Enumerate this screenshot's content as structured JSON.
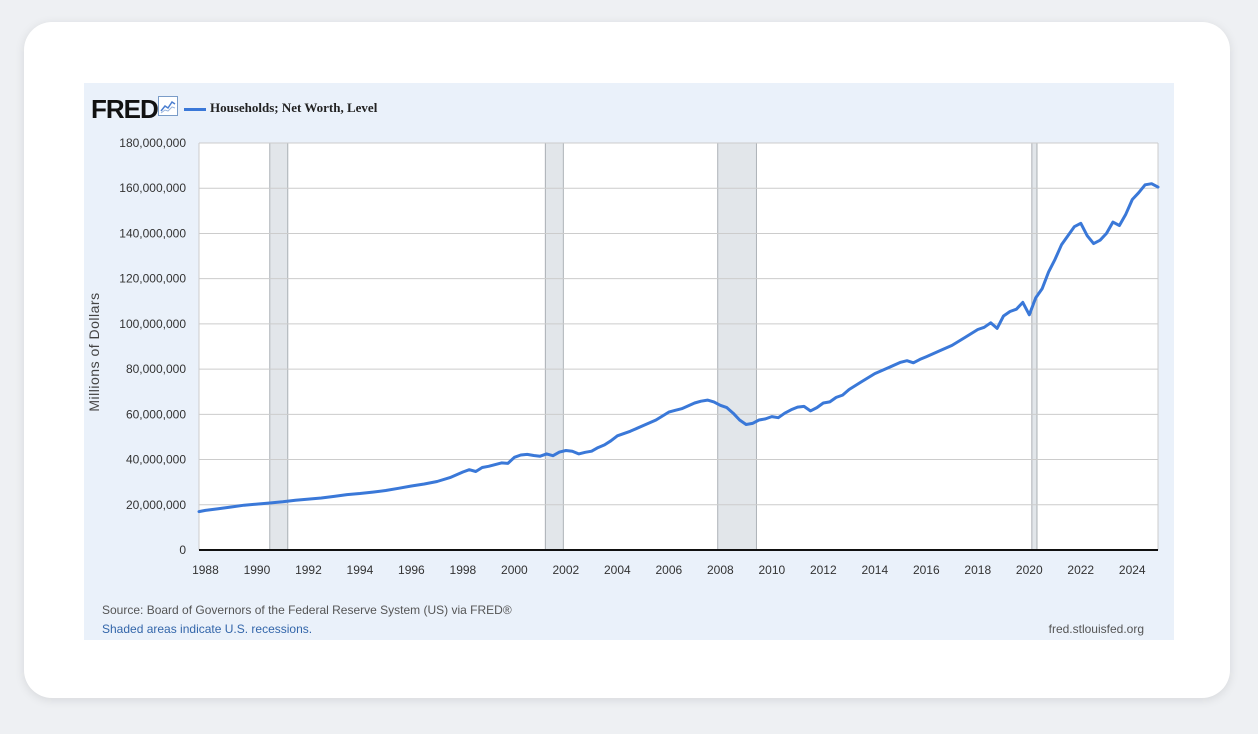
{
  "header": {
    "logo_text": "FRED",
    "logo_icon": "line-chart-icon",
    "series_label": "Households; Net Worth, Level"
  },
  "footer": {
    "source": "Source: Board of Governors of the Federal Reserve System (US) via FRED®",
    "recession_note": "Shaded areas indicate U.S. recessions.",
    "site": "fred.stlouisfed.org"
  },
  "colors": {
    "line": "#3a78d8",
    "recession": "#e2e6ea",
    "panel": "#eaf1fa",
    "plot_bg": "#ffffff",
    "grid": "#cccccc"
  },
  "chart_data": {
    "type": "line",
    "title": "Households; Net Worth, Level",
    "xlabel": "",
    "ylabel": "Millions of Dollars",
    "xlim": [
      1987.75,
      2025.0
    ],
    "ylim": [
      0,
      180000000
    ],
    "x_ticks": [
      1988,
      1990,
      1992,
      1994,
      1996,
      1998,
      2000,
      2002,
      2004,
      2006,
      2008,
      2010,
      2012,
      2014,
      2016,
      2018,
      2020,
      2022,
      2024
    ],
    "y_ticks": [
      0,
      20000000,
      40000000,
      60000000,
      80000000,
      100000000,
      120000000,
      140000000,
      160000000,
      180000000
    ],
    "y_tick_labels": [
      "0",
      "20,000,000",
      "40,000,000",
      "60,000,000",
      "80,000,000",
      "100,000,000",
      "120,000,000",
      "140,000,000",
      "160,000,000",
      "180,000,000"
    ],
    "grid": true,
    "legend": "top-left",
    "recessions": [
      [
        1990.5,
        1991.2
      ],
      [
        2001.2,
        2001.9
      ],
      [
        2007.9,
        2009.4
      ],
      [
        2020.1,
        2020.3
      ]
    ],
    "series": [
      {
        "name": "Households; Net Worth, Level",
        "x": [
          1987.75,
          1988.0,
          1988.5,
          1989.0,
          1989.5,
          1990.0,
          1990.5,
          1991.0,
          1991.5,
          1992.0,
          1992.5,
          1993.0,
          1993.5,
          1994.0,
          1994.5,
          1995.0,
          1995.5,
          1996.0,
          1996.5,
          1997.0,
          1997.5,
          1998.0,
          1998.25,
          1998.5,
          1998.75,
          1999.0,
          1999.5,
          1999.75,
          2000.0,
          2000.25,
          2000.5,
          2000.75,
          2001.0,
          2001.25,
          2001.5,
          2001.75,
          2002.0,
          2002.25,
          2002.5,
          2002.75,
          2003.0,
          2003.25,
          2003.5,
          2003.75,
          2004.0,
          2004.5,
          2005.0,
          2005.5,
          2006.0,
          2006.25,
          2006.5,
          2007.0,
          2007.25,
          2007.5,
          2007.75,
          2008.0,
          2008.25,
          2008.5,
          2008.75,
          2009.0,
          2009.25,
          2009.5,
          2009.75,
          2010.0,
          2010.25,
          2010.5,
          2010.75,
          2011.0,
          2011.25,
          2011.5,
          2011.75,
          2012.0,
          2012.25,
          2012.5,
          2012.75,
          2013.0,
          2013.5,
          2014.0,
          2014.5,
          2015.0,
          2015.25,
          2015.5,
          2015.75,
          2016.0,
          2016.5,
          2017.0,
          2017.5,
          2018.0,
          2018.25,
          2018.5,
          2018.75,
          2019.0,
          2019.25,
          2019.5,
          2019.75,
          2020.0,
          2020.25,
          2020.5,
          2020.75,
          2021.0,
          2021.25,
          2021.5,
          2021.75,
          2022.0,
          2022.25,
          2022.5,
          2022.75,
          2023.0,
          2023.25,
          2023.5,
          2023.75,
          2024.0,
          2024.25,
          2024.5,
          2024.75,
          2025.0
        ],
        "values": [
          17000000,
          17500000,
          18200000,
          19000000,
          19800000,
          20300000,
          20800000,
          21300000,
          22000000,
          22500000,
          23000000,
          23700000,
          24500000,
          25000000,
          25600000,
          26300000,
          27300000,
          28300000,
          29200000,
          30300000,
          32000000,
          34500000,
          35500000,
          34700000,
          36500000,
          37000000,
          38500000,
          38300000,
          41000000,
          42000000,
          42300000,
          41800000,
          41500000,
          42500000,
          41700000,
          43300000,
          44000000,
          43700000,
          42500000,
          43200000,
          43700000,
          45300000,
          46500000,
          48300000,
          50500000,
          52500000,
          55000000,
          57500000,
          61000000,
          61800000,
          62500000,
          65000000,
          65800000,
          66300000,
          65500000,
          64000000,
          63000000,
          60500000,
          57500000,
          55500000,
          56000000,
          57500000,
          58000000,
          59000000,
          58500000,
          60500000,
          62000000,
          63200000,
          63500000,
          61500000,
          63000000,
          65000000,
          65500000,
          67500000,
          68500000,
          71000000,
          74500000,
          78000000,
          80500000,
          83000000,
          83700000,
          82800000,
          84300000,
          85500000,
          88000000,
          90500000,
          94000000,
          97500000,
          98500000,
          100500000,
          98000000,
          103500000,
          105500000,
          106500000,
          109500000,
          104000000,
          111500000,
          115500000,
          123000000,
          128500000,
          135000000,
          139000000,
          143000000,
          144500000,
          139000000,
          135500000,
          137000000,
          140000000,
          145000000,
          143500000,
          148500000,
          155000000,
          158000000,
          161500000,
          162000000,
          160500000
        ]
      }
    ]
  }
}
